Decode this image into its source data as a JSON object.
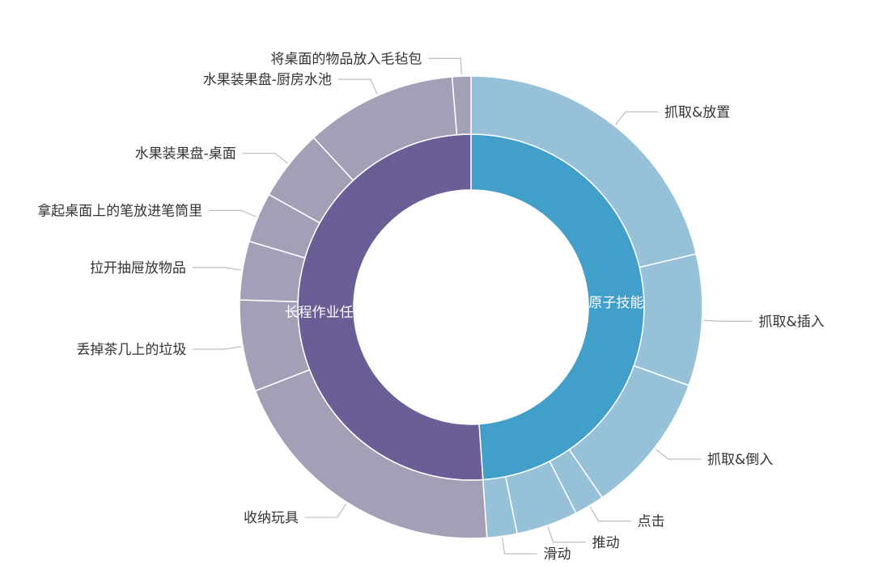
{
  "chart_data": {
    "type": "sunburst",
    "title": "",
    "unit": "percent of total (estimated from arc angles)",
    "colors": {
      "原子技能": {
        "inner": "#419fca",
        "outer": "#97c1d9"
      },
      "长程作业任务": {
        "inner": "#6b5e96",
        "outer": "#a49fb6"
      }
    },
    "groups": [
      {
        "name": "原子技能",
        "children": [
          {
            "name": "抓取&放置",
            "value": 21.3
          },
          {
            "name": "抓取&插入",
            "value": 9.2
          },
          {
            "name": "抓取&倒入",
            "value": 9.9
          },
          {
            "name": "点击",
            "value": 2.1
          },
          {
            "name": "推动",
            "value": 4.3
          },
          {
            "name": "滑动",
            "value": 2.1
          }
        ]
      },
      {
        "name": "长程作业任务",
        "children": [
          {
            "name": "收纳玩具",
            "value": 20.2
          },
          {
            "name": "丢掉茶几上的垃圾",
            "value": 6.4
          },
          {
            "name": "拉开抽屉放物品",
            "value": 4.1
          },
          {
            "name": "拿起桌面上的笔放进笔筒里",
            "value": 3.5
          },
          {
            "name": "水果装果盘-桌面",
            "value": 5.0
          },
          {
            "name": "水果装果盘-厨房水池",
            "value": 10.6
          },
          {
            "name": "将桌面的物品放入毛毡包",
            "value": 1.3
          }
        ]
      }
    ]
  }
}
